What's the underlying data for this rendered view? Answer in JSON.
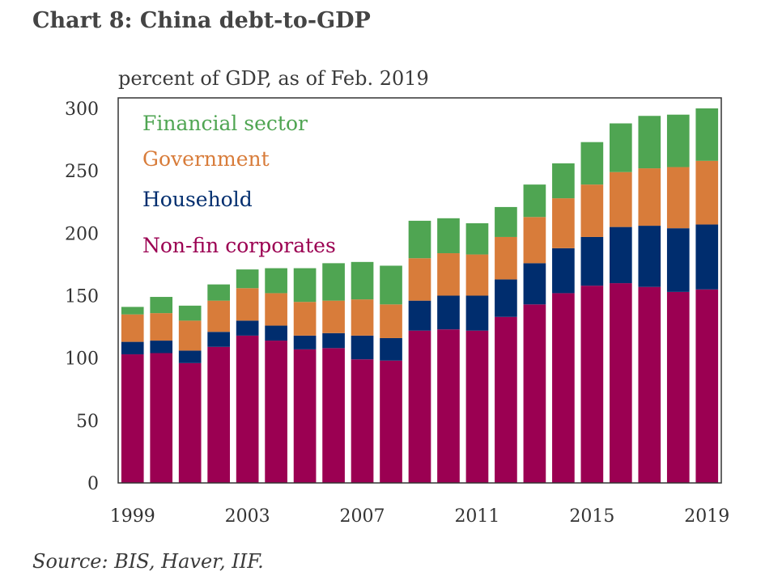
{
  "title": "Chart 8: China debt-to-GDP",
  "subtitle": "percent of GDP, as of Feb. 2019",
  "source": "Source:  BIS, Haver, IIF.",
  "colors": {
    "non_fin": "#9b0052",
    "household": "#002d6e",
    "government": "#d87c3a",
    "financial": "#4fa552"
  },
  "chart_data": {
    "type": "bar",
    "stacked": true,
    "categories": [
      "1999",
      "2000",
      "2001",
      "2002",
      "2003",
      "2004",
      "2005",
      "2006",
      "2007",
      "2008",
      "2009",
      "2010",
      "2011",
      "2012",
      "2013",
      "2014",
      "2015",
      "2016",
      "2017",
      "2018",
      "2019"
    ],
    "x_tick_labels": [
      "1999",
      "2003",
      "2007",
      "2011",
      "2015",
      "2019"
    ],
    "y_ticks": [
      0,
      50,
      100,
      150,
      200,
      250,
      300
    ],
    "ylim": [
      0,
      300
    ],
    "title": "Chart 8: China debt-to-GDP",
    "ylabel": "percent of GDP, as of Feb. 2019",
    "legend_position": "top-left",
    "series": [
      {
        "name": "Non-fin corporates",
        "values": [
          103,
          104,
          96,
          109,
          118,
          114,
          107,
          108,
          99,
          98,
          122,
          123,
          122,
          133,
          143,
          152,
          158,
          160,
          157,
          153,
          155
        ]
      },
      {
        "name": "Household",
        "values": [
          10,
          10,
          10,
          12,
          12,
          12,
          11,
          12,
          19,
          18,
          24,
          27,
          28,
          30,
          33,
          36,
          39,
          45,
          49,
          51,
          52
        ]
      },
      {
        "name": "Government",
        "values": [
          22,
          22,
          24,
          25,
          26,
          26,
          27,
          26,
          29,
          27,
          34,
          34,
          33,
          34,
          37,
          40,
          42,
          44,
          46,
          49,
          51
        ]
      },
      {
        "name": "Financial sector",
        "values": [
          6,
          13,
          12,
          13,
          15,
          20,
          27,
          30,
          30,
          31,
          30,
          28,
          25,
          24,
          26,
          28,
          34,
          39,
          42,
          42,
          42
        ]
      }
    ]
  }
}
